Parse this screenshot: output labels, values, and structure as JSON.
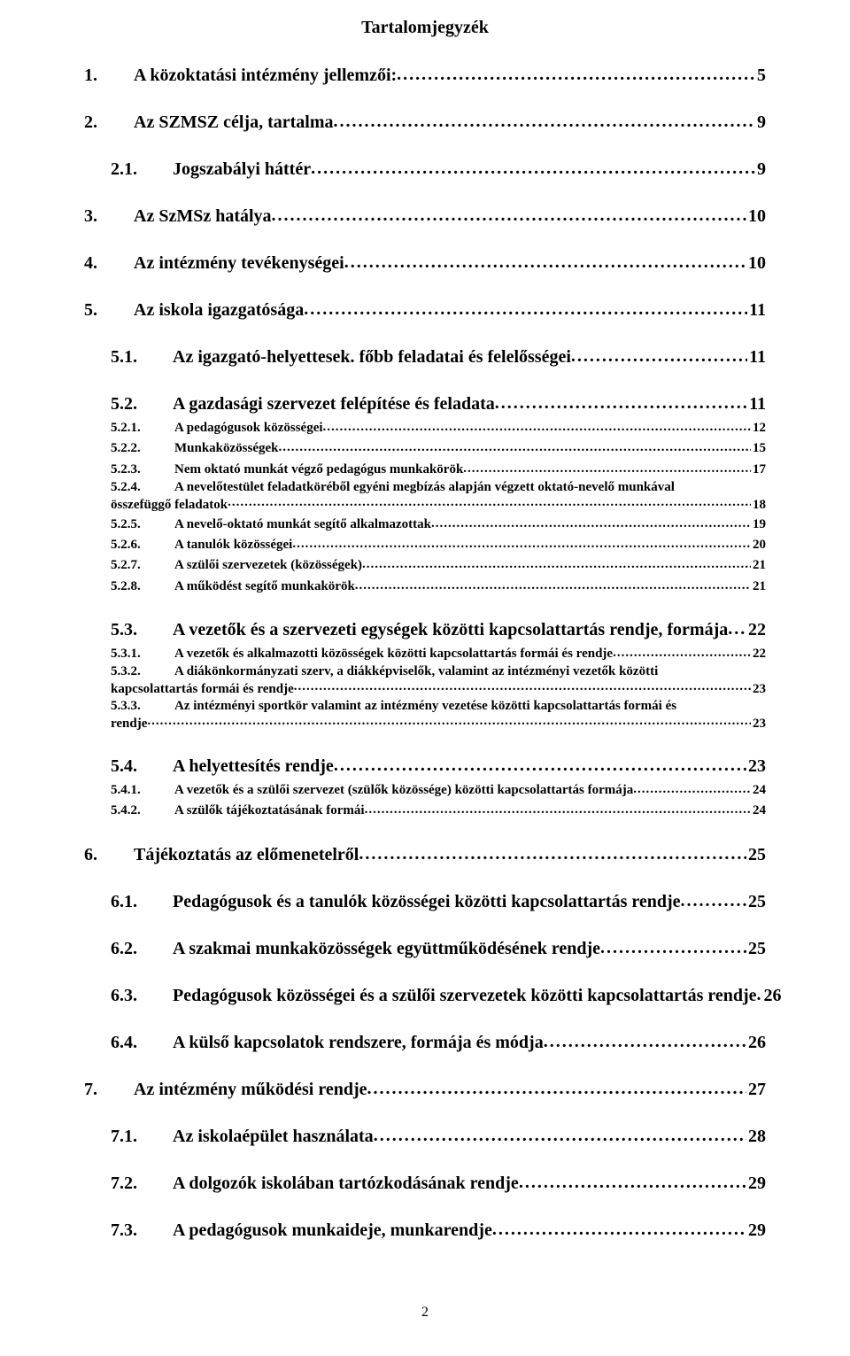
{
  "title": "Tartalomjegyzék",
  "pageNumber": "2",
  "items": [
    {
      "level": "l1",
      "num": "1.",
      "text": "A közoktatási intézmény jellemzői:",
      "page": "5"
    },
    {
      "level": "l1",
      "num": "2.",
      "text": "Az SZMSZ célja, tartalma",
      "page": "9"
    },
    {
      "level": "l2",
      "num": "2.1.",
      "text": "Jogszabályi háttér",
      "page": "9"
    },
    {
      "level": "l1",
      "num": "3.",
      "text": "Az SzMSz hatálya",
      "page": "10"
    },
    {
      "level": "l1",
      "num": "4.",
      "text": "Az intézmény tevékenységei",
      "page": "10"
    },
    {
      "level": "l1",
      "num": "5.",
      "text": "Az iskola igazgatósága",
      "page": "11"
    },
    {
      "level": "l2",
      "num": "5.1.",
      "text": "Az igazgató-helyettesek. főbb feladatai és felelősségei",
      "page": "11"
    },
    {
      "level": "l2",
      "num": "5.2.",
      "text": "A gazdasági szervezet felépítése és feladata",
      "page": "11"
    },
    {
      "level": "l3",
      "num": "5.2.1.",
      "text": "A pedagógusok közösségei",
      "page": "12"
    },
    {
      "level": "l3",
      "num": "5.2.2.",
      "text": "Munkaközösségek",
      "page": "15"
    },
    {
      "level": "l3",
      "num": "5.2.3.",
      "text": "Nem oktató munkát végző pedagógus munkakörök",
      "page": "17"
    },
    {
      "level": "l3m",
      "num": "5.2.4.",
      "text1": "A nevelőtestület feladatköréből egyéni megbízás alapján végzett oktató-nevelő munkával",
      "text2": "összefüggő feladatok",
      "page": "18"
    },
    {
      "level": "l3",
      "num": "5.2.5.",
      "text": "A nevelő-oktató munkát segítő alkalmazottak",
      "page": "19"
    },
    {
      "level": "l3",
      "num": "5.2.6.",
      "text": "A tanulók közösségei",
      "page": "20"
    },
    {
      "level": "l3",
      "num": "5.2.7.",
      "text": "A szülői szervezetek (közösségek)",
      "page": "21"
    },
    {
      "level": "l3",
      "num": "5.2.8.",
      "text": "A működést segítő munkakörök",
      "page": "21"
    },
    {
      "level": "l2",
      "num": "5.3.",
      "text": "A vezetők és a szervezeti egységek közötti kapcsolattartás rendje, formája",
      "page": "22"
    },
    {
      "level": "l3",
      "num": "5.3.1.",
      "text": "A vezetők és alkalmazotti közösségek közötti kapcsolattartás formái és rendje",
      "page": "22"
    },
    {
      "level": "l3m",
      "num": "5.3.2.",
      "text1": "A diákönkormányzati szerv, a diákképviselők, valamint az intézményi vezetők közötti",
      "text2": "kapcsolattartás formái és rendje",
      "page": "23"
    },
    {
      "level": "l3m",
      "num": "5.3.3.",
      "text1": "Az intézményi sportkör valamint az intézmény vezetése közötti kapcsolattartás formái és",
      "text2": "rendje",
      "page": "23"
    },
    {
      "level": "l2",
      "num": "5.4.",
      "text": "A helyettesítés rendje",
      "page": "23"
    },
    {
      "level": "l3",
      "num": "5.4.1.",
      "text": "A vezetők és a szülői szervezet (szülők közössége) közötti kapcsolattartás formája",
      "page": "24"
    },
    {
      "level": "l3",
      "num": "5.4.2.",
      "text": "A szülők tájékoztatásának formái",
      "page": "24"
    },
    {
      "level": "l1",
      "num": "6.",
      "text": "Tájékoztatás az előmenetelről",
      "page": "25"
    },
    {
      "level": "l2",
      "num": "6.1.",
      "text": "Pedagógusok és a tanulók közösségei közötti kapcsolattartás rendje",
      "page": "25"
    },
    {
      "level": "l2",
      "num": "6.2.",
      "text": "A szakmai munkaközösségek együttműködésének rendje",
      "page": "25"
    },
    {
      "level": "l2",
      "num": "6.3.",
      "text": "Pedagógusok közösségei és a szülői szervezetek közötti kapcsolattartás rendje",
      "page": "26"
    },
    {
      "level": "l2",
      "num": "6.4.",
      "text": "A külső kapcsolatok rendszere, formája és módja",
      "page": "26"
    },
    {
      "level": "l1",
      "num": "7.",
      "text": "Az intézmény működési rendje",
      "page": "27"
    },
    {
      "level": "l2",
      "num": "7.1.",
      "text": "Az iskolaépület használata",
      "page": "28"
    },
    {
      "level": "l2",
      "num": "7.2.",
      "text": "A dolgozók iskolában tartózkodásának rendje",
      "page": "29"
    },
    {
      "level": "l2",
      "num": "7.3.",
      "text": "A pedagógusok munkaideje, munkarendje",
      "page": "29"
    }
  ]
}
